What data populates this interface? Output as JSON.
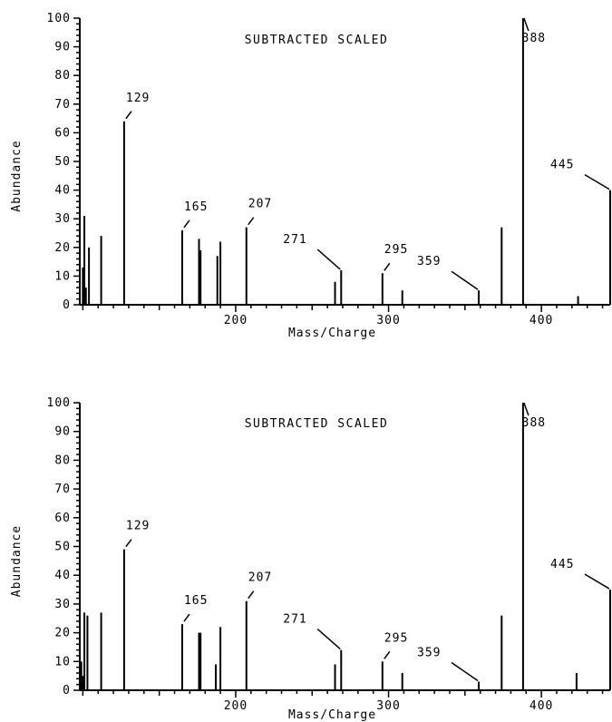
{
  "chart_data": [
    {
      "type": "bar",
      "title": "SUBTRACTED SCALED",
      "xlabel": "Mass/Charge",
      "ylabel": "Abundance",
      "xlim": [
        98,
        445
      ],
      "ylim": [
        0,
        100
      ],
      "xticks": [
        200,
        300,
        400
      ],
      "yticks": [
        0,
        10,
        20,
        30,
        40,
        50,
        60,
        70,
        80,
        90,
        100
      ],
      "grid": false,
      "x": [
        100,
        101,
        102,
        104,
        112,
        127,
        165,
        176,
        177,
        188,
        190,
        207,
        265,
        269,
        296,
        309,
        359,
        374,
        388,
        424,
        445
      ],
      "values": [
        13,
        31,
        6,
        20,
        24,
        64,
        26,
        23,
        19,
        17,
        22,
        27,
        8,
        12,
        11,
        5,
        5,
        27,
        100,
        3,
        40
      ],
      "annotations": [
        {
          "text": "129",
          "x": 127
        },
        {
          "text": "165",
          "x": 165
        },
        {
          "text": "207",
          "x": 207
        },
        {
          "text": "271",
          "x": 269
        },
        {
          "text": "295",
          "x": 296
        },
        {
          "text": "359",
          "x": 359
        },
        {
          "text": "388",
          "x": 388
        },
        {
          "text": "445",
          "x": 445
        }
      ]
    },
    {
      "type": "bar",
      "title": "SUBTRACTED SCALED",
      "xlabel": "Mass/Charge",
      "ylabel": "Abundance",
      "xlim": [
        98,
        445
      ],
      "ylim": [
        0,
        100
      ],
      "xticks": [
        200,
        300,
        400
      ],
      "yticks": [
        0,
        10,
        20,
        30,
        40,
        50,
        60,
        70,
        80,
        90,
        100
      ],
      "grid": false,
      "x": [
        99,
        100,
        101,
        103,
        112,
        127,
        165,
        176,
        177,
        187,
        190,
        207,
        265,
        269,
        296,
        309,
        359,
        374,
        388,
        423,
        445
      ],
      "values": [
        10,
        5,
        27,
        26,
        27,
        49,
        23,
        20,
        20,
        9,
        22,
        31,
        9,
        14,
        10,
        6,
        3,
        26,
        100,
        6,
        35
      ],
      "annotations": [
        {
          "text": "129",
          "x": 127
        },
        {
          "text": "165",
          "x": 165
        },
        {
          "text": "207",
          "x": 207
        },
        {
          "text": "271",
          "x": 269
        },
        {
          "text": "295",
          "x": 296
        },
        {
          "text": "359",
          "x": 359
        },
        {
          "text": "388",
          "x": 388
        },
        {
          "text": "445",
          "x": 445
        }
      ]
    }
  ]
}
